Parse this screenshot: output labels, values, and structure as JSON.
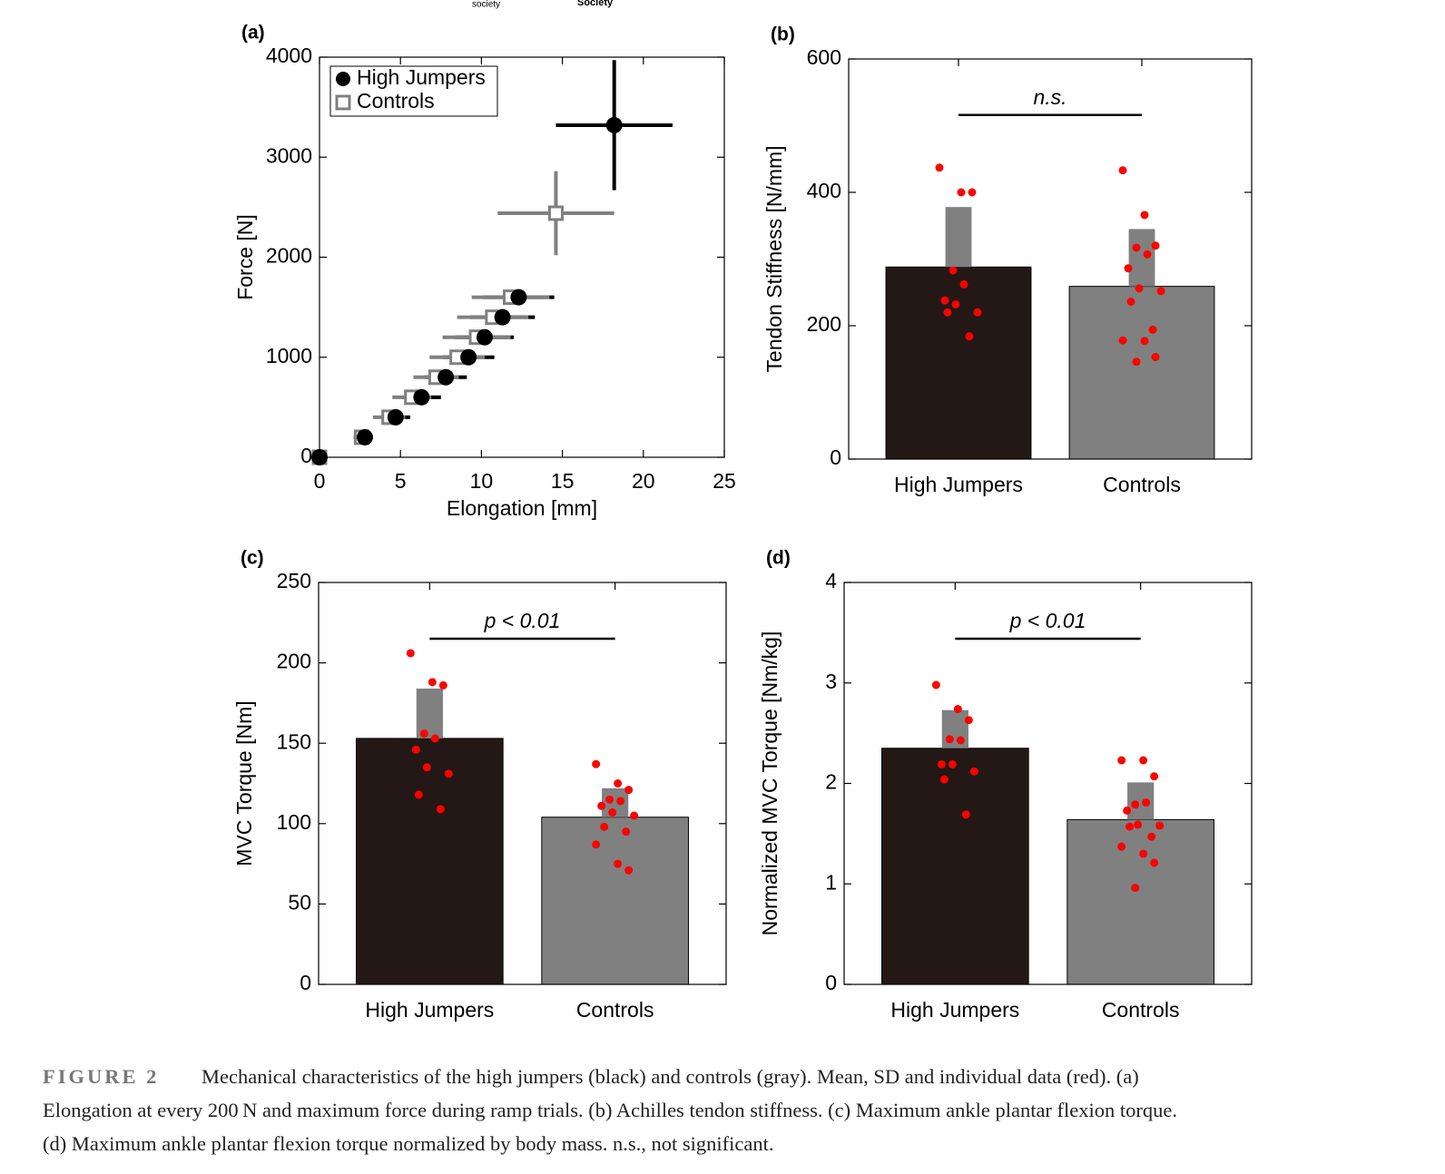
{
  "header_fragments": [
    "society",
    "Society"
  ],
  "chart_data": [
    {
      "type": "scatter",
      "panel": "(a)",
      "xlabel": "Elongation [mm]",
      "ylabel": "Force [N]",
      "xlim": [
        0,
        25
      ],
      "xticks": [
        0,
        5,
        10,
        15,
        20,
        25
      ],
      "ylim": [
        0,
        4000
      ],
      "yticks": [
        0,
        1000,
        2000,
        3000,
        4000
      ],
      "legend": "upper left",
      "series": [
        {
          "name": "High Jumpers",
          "color": "#000000",
          "marker": "circle",
          "x": [
            0,
            2.8,
            4.7,
            6.3,
            7.8,
            9.2,
            10.2,
            11.3,
            12.3,
            18.2
          ],
          "values": [
            0,
            200,
            400,
            600,
            800,
            1000,
            1200,
            1400,
            1600,
            3320
          ],
          "xerr": [
            0,
            0.5,
            0.9,
            1.2,
            1.3,
            1.6,
            1.8,
            2.0,
            2.2,
            3.6
          ],
          "yerr": [
            0,
            0,
            0,
            0,
            0,
            0,
            0,
            0,
            0,
            650
          ]
        },
        {
          "name": "Controls",
          "color": "#808080",
          "marker": "square",
          "x": [
            0,
            2.6,
            4.3,
            5.7,
            7.2,
            8.5,
            9.7,
            10.7,
            11.8,
            14.6
          ],
          "values": [
            0,
            200,
            400,
            600,
            800,
            1000,
            1200,
            1400,
            1600,
            2440
          ],
          "xerr": [
            0,
            0.5,
            1.0,
            1.2,
            1.4,
            1.7,
            2.1,
            2.2,
            2.4,
            3.6
          ],
          "yerr": [
            0,
            0,
            0,
            0,
            0,
            0,
            0,
            0,
            0,
            420
          ]
        }
      ]
    },
    {
      "type": "bar",
      "panel": "(b)",
      "ylabel": "Tendon Stiffness [N/mm]",
      "categories": [
        "High Jumpers",
        "Controls"
      ],
      "values": [
        288,
        259
      ],
      "errors": [
        90,
        86
      ],
      "colors": [
        "#231815",
        "#808080"
      ],
      "error_color": "#808080",
      "point_color": "#ff0000",
      "points": [
        [
          437,
          400,
          400,
          283,
          262,
          238,
          232,
          220,
          220,
          184
        ],
        [
          433,
          366,
          320,
          317,
          307,
          286,
          256,
          252,
          236,
          194,
          178,
          177,
          153,
          146
        ]
      ],
      "ylim": [
        0,
        600
      ],
      "yticks": [
        0,
        200,
        400,
        600
      ],
      "annotation": "n.s."
    },
    {
      "type": "bar",
      "panel": "(c)",
      "ylabel": "MVC Torque [Nm]",
      "categories": [
        "High Jumpers",
        "Controls"
      ],
      "values": [
        153,
        104
      ],
      "errors": [
        31,
        18
      ],
      "colors": [
        "#231815",
        "#808080"
      ],
      "error_color": "#808080",
      "point_color": "#ff0000",
      "points": [
        [
          206,
          188,
          186,
          156,
          153,
          146,
          135,
          131,
          118,
          109
        ],
        [
          137,
          125,
          121,
          115,
          114,
          111,
          107,
          105,
          98,
          95,
          87,
          75,
          71
        ]
      ],
      "ylim": [
        0,
        250
      ],
      "yticks": [
        0,
        50,
        100,
        150,
        200,
        250
      ],
      "annotation": "p < 0.01"
    },
    {
      "type": "bar",
      "panel": "(d)",
      "ylabel": "Normalized MVC Torque [Nm/kg]",
      "categories": [
        "High Jumpers",
        "Controls"
      ],
      "values": [
        2.35,
        1.64
      ],
      "errors": [
        0.38,
        0.37
      ],
      "colors": [
        "#231815",
        "#808080"
      ],
      "error_color": "#808080",
      "point_color": "#ff0000",
      "points": [
        [
          2.98,
          2.74,
          2.63,
          2.44,
          2.43,
          2.19,
          2.19,
          2.12,
          2.04,
          1.69
        ],
        [
          2.23,
          2.23,
          2.07,
          1.79,
          1.81,
          1.73,
          1.59,
          1.58,
          1.57,
          1.47,
          1.37,
          1.3,
          1.21,
          0.96
        ]
      ],
      "ylim": [
        0,
        4
      ],
      "yticks": [
        0,
        1,
        2,
        3,
        4
      ],
      "annotation": "p < 0.01"
    }
  ],
  "caption": {
    "label": "FIGURE 2",
    "lines": [
      "Mechanical characteristics of the high jumpers (black) and controls (gray). Mean, SD and individual data (red). (a)",
      "Elongation at every 200 N and maximum force during ramp trials. (b) Achilles tendon stiffness. (c) Maximum ankle plantar flexion torque.",
      "(d) Maximum ankle plantar flexion torque normalized by body mass. n.s., not significant."
    ]
  }
}
